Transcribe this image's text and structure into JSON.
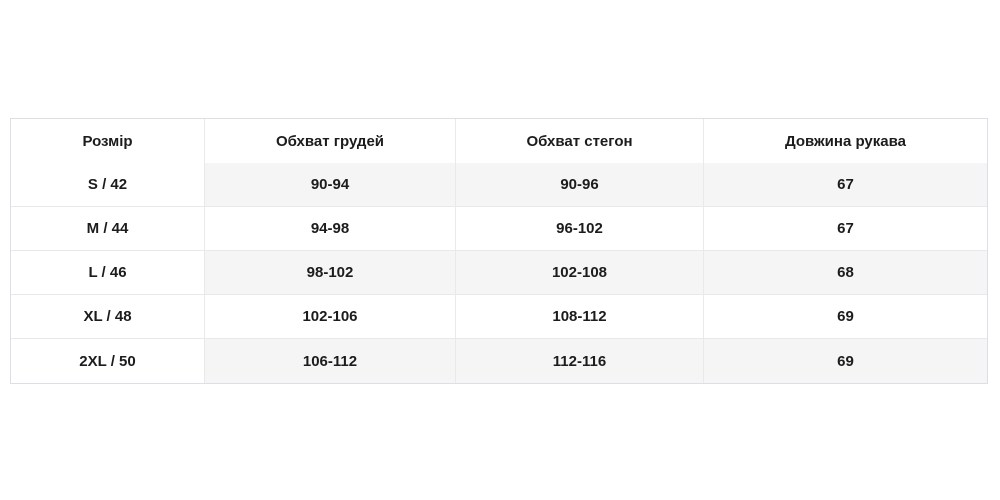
{
  "colors": {
    "background": "#ffffff",
    "text": "#1c1c1c",
    "stripe": "#f5f5f5",
    "border_inner": "#e9e9e9",
    "border_outer": "#dcdfe4"
  },
  "chart_data": {
    "type": "table",
    "title": "",
    "columns": [
      "Розмір",
      "Обхват грудей",
      "Обхват стегон",
      "Довжина рукава"
    ],
    "rows": [
      [
        "S / 42",
        "90-94",
        "90-96",
        "67"
      ],
      [
        "M / 44",
        "94-98",
        "96-102",
        "67"
      ],
      [
        "L / 46",
        "98-102",
        "102-108",
        "68"
      ],
      [
        "XL / 48",
        "102-106",
        "108-112",
        "69"
      ],
      [
        "2XL / 50",
        "106-112",
        "112-116",
        "69"
      ]
    ]
  }
}
